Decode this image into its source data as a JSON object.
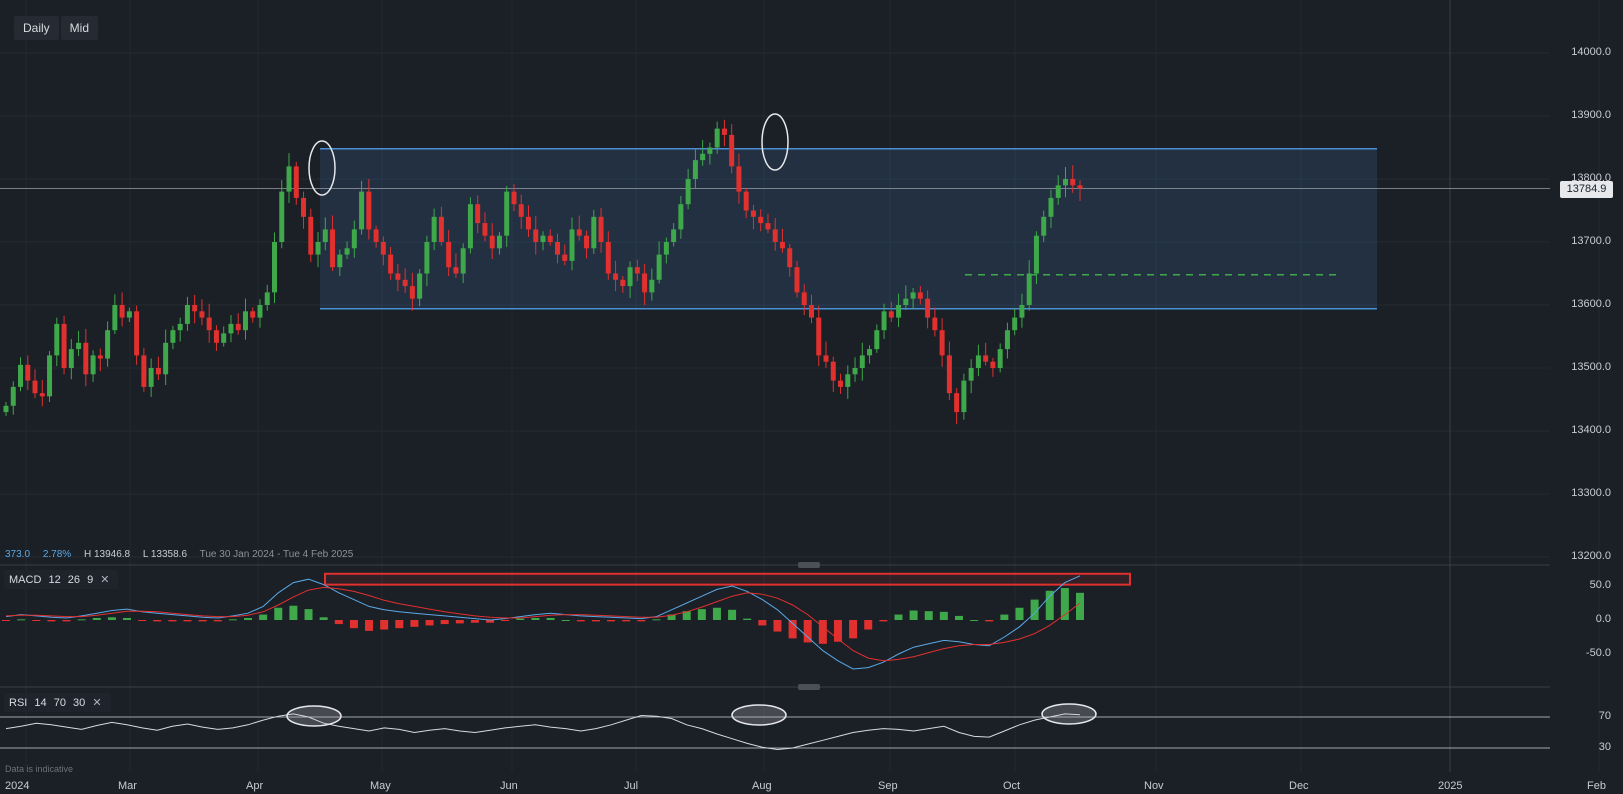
{
  "toolbar": {
    "interval_label": "Daily",
    "price_mode_label": "Mid"
  },
  "stats": {
    "change": "373.0",
    "change_pct": "2.78%",
    "high": "H 13946.8",
    "low": "L 13358.6",
    "range": "Tue 30 Jan 2024 - Tue 4 Feb 2025"
  },
  "price_label": "13784.9",
  "macd_label": {
    "name": "MACD",
    "p1": "12",
    "p2": "26",
    "p3": "9",
    "close": "✕"
  },
  "rsi_label": {
    "name": "RSI",
    "p1": "14",
    "p2": "70",
    "p3": "30",
    "close": "✕"
  },
  "footnote": "Data is indicative",
  "colors": {
    "up": "#3ea84a",
    "down": "#e0312f",
    "channel": "#4a8fd4",
    "macd_line": "#5aa9e6",
    "signal_line": "#e0312f"
  },
  "chart_data": {
    "type": "candlestick",
    "price_axis": {
      "ticks": [
        "14000.0",
        "13900.0",
        "13800.0",
        "13700.0",
        "13600.0",
        "13500.0",
        "13400.0",
        "13300.0",
        "13200.0"
      ],
      "range": [
        13200,
        14000
      ]
    },
    "time_axis": {
      "ticks": [
        "2024",
        "Mar",
        "Apr",
        "May",
        "Jun",
        "Jul",
        "Aug",
        "Sep",
        "Oct",
        "Nov",
        "Dec",
        "2025",
        "Feb"
      ]
    },
    "last_price": 13784.9,
    "channel": {
      "upper": 13848,
      "lower": 13594,
      "start": "Apr 15",
      "end": "Dec"
    },
    "support_dashed": 13648,
    "highlights": [
      "mid Apr high",
      "early Aug high"
    ],
    "closes": [
      13440,
      13470,
      13505,
      13480,
      13460,
      13455,
      13520,
      13570,
      13500,
      13530,
      13540,
      13490,
      13520,
      13515,
      13560,
      13600,
      13580,
      13590,
      13520,
      13470,
      13500,
      13490,
      13540,
      13560,
      13570,
      13600,
      13590,
      13580,
      13560,
      13540,
      13555,
      13570,
      13560,
      13590,
      13580,
      13600,
      13620,
      13700,
      13780,
      13820,
      13770,
      13740,
      13680,
      13700,
      13720,
      13660,
      13680,
      13690,
      13720,
      13780,
      13720,
      13700,
      13680,
      13650,
      13640,
      13630,
      13610,
      13650,
      13700,
      13740,
      13700,
      13660,
      13650,
      13690,
      13760,
      13730,
      13710,
      13690,
      13710,
      13780,
      13760,
      13740,
      13720,
      13700,
      13710,
      13700,
      13680,
      13670,
      13720,
      13710,
      13690,
      13740,
      13700,
      13650,
      13640,
      13630,
      13660,
      13650,
      13620,
      13640,
      13680,
      13700,
      13720,
      13760,
      13800,
      13830,
      13840,
      13850,
      13880,
      13870,
      13820,
      13780,
      13750,
      13740,
      13730,
      13720,
      13700,
      13690,
      13660,
      13620,
      13600,
      13580,
      13520,
      13510,
      13480,
      13470,
      13490,
      13500,
      13520,
      13530,
      13560,
      13590,
      13580,
      13600,
      13610,
      13620,
      13610,
      13580,
      13560,
      13520,
      13460,
      13430,
      13480,
      13500,
      13520,
      13510,
      13500,
      13530,
      13560,
      13580,
      13600,
      13650,
      13710,
      13740,
      13770,
      13790,
      13800,
      13790,
      13785
    ],
    "macd": {
      "ticks": [
        "50.0",
        "0.0",
        "-50.0"
      ],
      "macd_line": [
        5,
        8,
        6,
        4,
        3,
        6,
        10,
        14,
        16,
        12,
        10,
        8,
        6,
        4,
        3,
        6,
        10,
        20,
        40,
        55,
        60,
        52,
        40,
        30,
        20,
        15,
        12,
        10,
        8,
        6,
        4,
        2,
        0,
        2,
        5,
        8,
        10,
        8,
        6,
        5,
        4,
        3,
        2,
        5,
        15,
        25,
        35,
        45,
        50,
        42,
        30,
        15,
        -5,
        -25,
        -45,
        -60,
        -72,
        -70,
        -62,
        -50,
        -40,
        -35,
        -30,
        -32,
        -36,
        -38,
        -25,
        -10,
        10,
        35,
        55,
        65
      ],
      "signal_line": [
        6,
        7,
        7,
        6,
        5,
        5,
        7,
        10,
        13,
        13,
        12,
        10,
        8,
        6,
        5,
        5,
        7,
        12,
        22,
        34,
        44,
        48,
        46,
        42,
        36,
        29,
        24,
        20,
        16,
        12,
        9,
        6,
        4,
        3,
        3,
        5,
        7,
        8,
        8,
        7,
        6,
        5,
        4,
        4,
        7,
        12,
        19,
        27,
        35,
        40,
        38,
        32,
        22,
        8,
        -10,
        -28,
        -45,
        -56,
        -60,
        -58,
        -54,
        -48,
        -42,
        -38,
        -36,
        -36,
        -33,
        -28,
        -20,
        -8,
        8,
        25
      ]
    },
    "rsi": {
      "ticks": [
        "70",
        "30"
      ],
      "values": [
        55,
        58,
        62,
        60,
        57,
        54,
        59,
        63,
        60,
        56,
        53,
        58,
        61,
        57,
        54,
        56,
        60,
        66,
        71,
        74,
        70,
        62,
        58,
        55,
        52,
        56,
        54,
        50,
        53,
        55,
        52,
        50,
        53,
        56,
        58,
        60,
        57,
        55,
        52,
        55,
        60,
        66,
        72,
        71,
        68,
        60,
        55,
        48,
        42,
        36,
        31,
        28,
        30,
        35,
        40,
        45,
        50,
        53,
        55,
        54,
        52,
        55,
        58,
        50,
        45,
        44,
        52,
        60,
        66,
        70,
        74,
        73
      ]
    }
  }
}
